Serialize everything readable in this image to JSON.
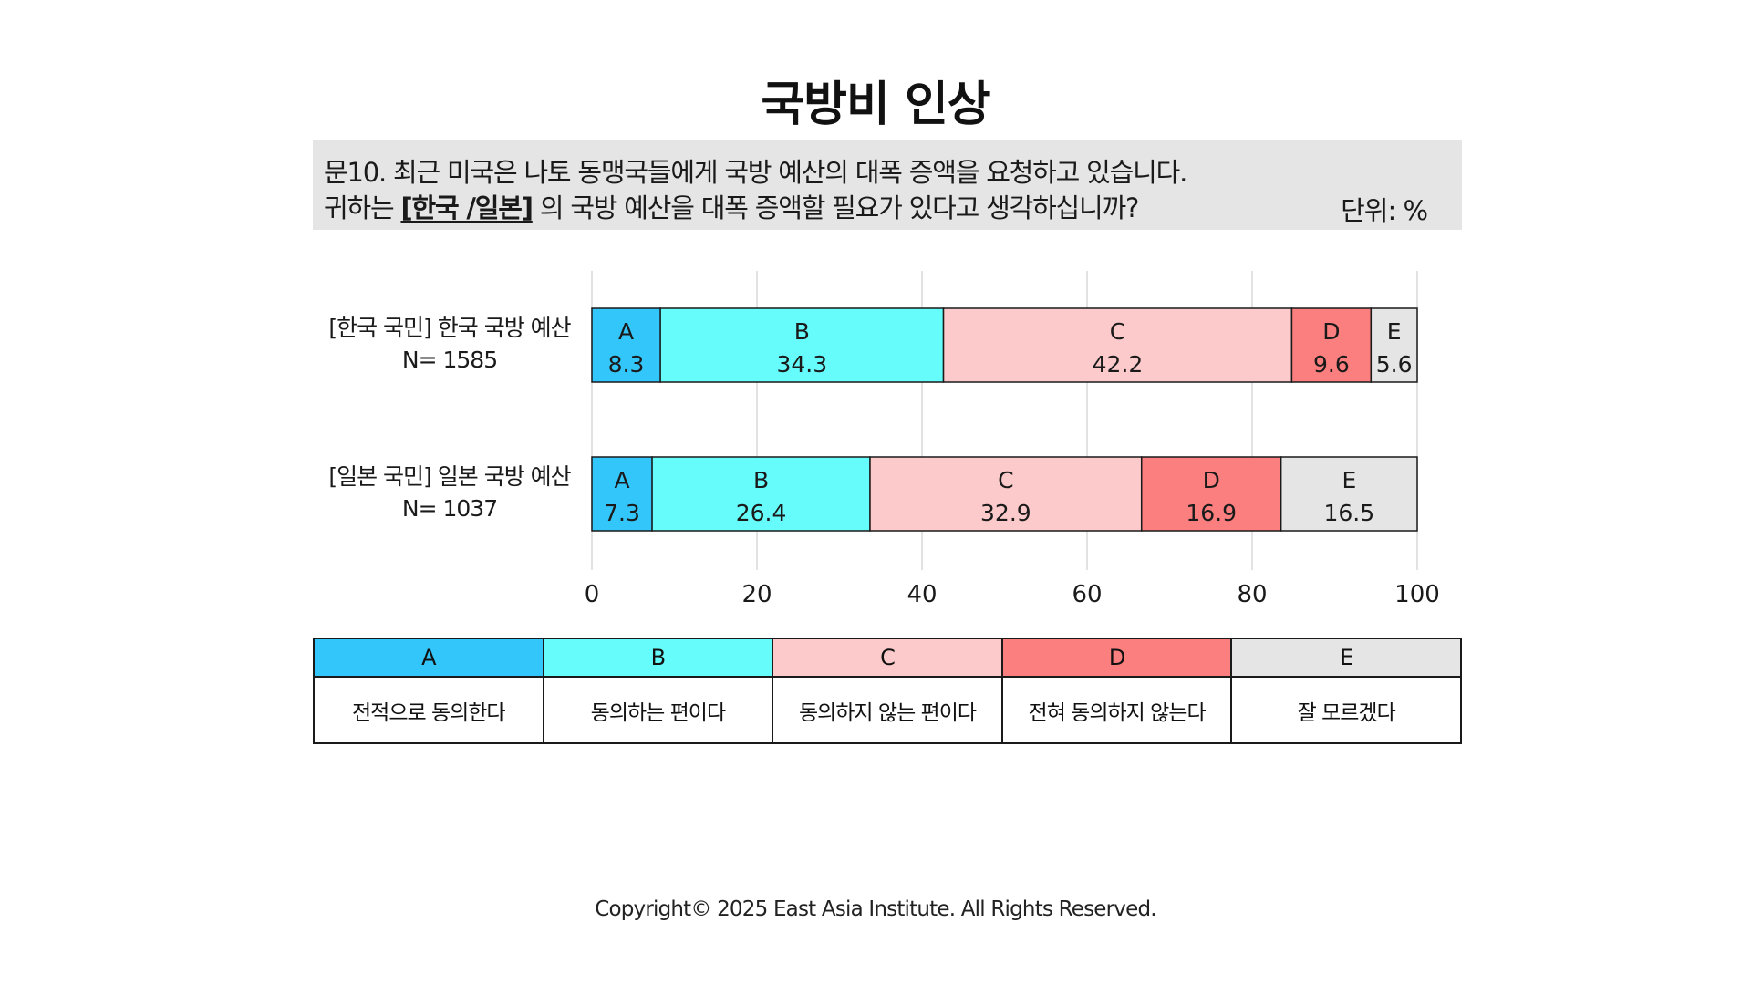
{
  "title": "국방비 인상",
  "question": {
    "line1": "문10. 최근 미국은 나토 동맹국들에게 국방 예산의 대폭 증액을 요청하고 있습니다.",
    "line2_pre": "귀하는 ",
    "line2_emph": "[한국 /일본]",
    "line2_post": " 의 국방 예산을 대폭 증액할 필요가 있다고 생각하십니까?",
    "unit": "단위: %"
  },
  "legend": [
    {
      "key": "A",
      "desc": "전적으로 동의한다",
      "color": "#33c6fa"
    },
    {
      "key": "B",
      "desc": "동의하는 편이다",
      "color": "#66fcfc"
    },
    {
      "key": "C",
      "desc": "동의하지 않는 편이다",
      "color": "#fccaca"
    },
    {
      "key": "D",
      "desc": "전혀 동의하지 않는다",
      "color": "#fc7f7f"
    },
    {
      "key": "E",
      "desc": "잘 모르겠다",
      "color": "#e5e5e5"
    }
  ],
  "chart_data": {
    "type": "bar",
    "orientation": "horizontal",
    "stacked": true,
    "xlim": [
      0,
      100
    ],
    "xticks": [
      "0",
      "20",
      "40",
      "60",
      "80",
      "100"
    ],
    "grid": true,
    "categories": [
      {
        "label": "[한국 국민] 한국 국방 예산",
        "n": "N= 1585"
      },
      {
        "label": "[일본 국민] 일본 국방 예산",
        "n": "N= 1037"
      }
    ],
    "series": [
      {
        "name": "A",
        "color": "#33c6fa",
        "values": [
          8.3,
          7.3
        ],
        "labels": [
          "8.3",
          "7.3"
        ]
      },
      {
        "name": "B",
        "color": "#66fcfc",
        "values": [
          34.3,
          26.4
        ],
        "labels": [
          "34.3",
          "26.4"
        ]
      },
      {
        "name": "C",
        "color": "#fccaca",
        "values": [
          42.2,
          32.9
        ],
        "labels": [
          "42.2",
          "32.9"
        ]
      },
      {
        "name": "D",
        "color": "#fc7f7f",
        "values": [
          9.6,
          16.9
        ],
        "labels": [
          "9.6",
          "16.9"
        ]
      },
      {
        "name": "E",
        "color": "#e5e5e5",
        "values": [
          5.6,
          16.5
        ],
        "labels": [
          "5.6",
          "16.5"
        ]
      }
    ]
  },
  "footer": "Copyright© 2025 East Asia Institute. All Rights Reserved."
}
